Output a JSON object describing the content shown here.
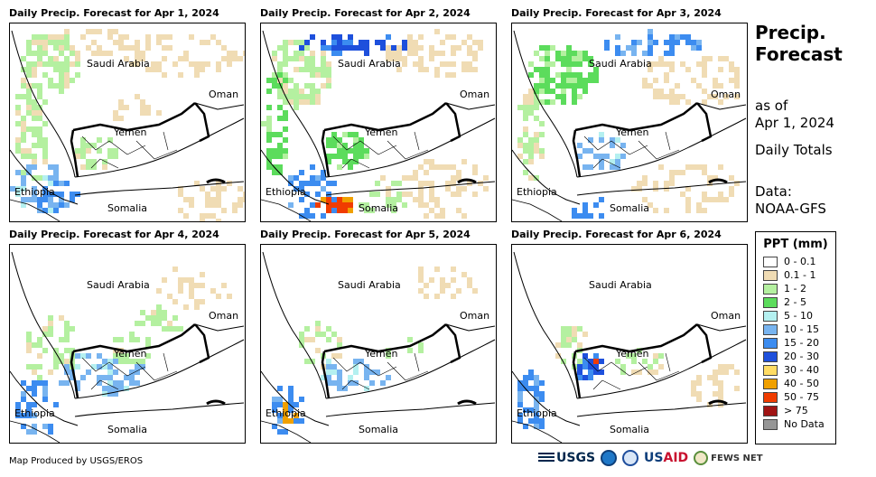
{
  "panels": [
    {
      "title": "Daily Precip. Forecast for Apr 1, 2024"
    },
    {
      "title": "Daily Precip. Forecast for Apr 2, 2024"
    },
    {
      "title": "Daily Precip. Forecast for Apr 3, 2024"
    },
    {
      "title": "Daily Precip. Forecast for Apr 4, 2024"
    },
    {
      "title": "Daily Precip. Forecast for Apr 5, 2024"
    },
    {
      "title": "Daily Precip. Forecast for Apr 6, 2024"
    }
  ],
  "map_labels": {
    "saudi": "Saudi Arabia",
    "oman": "Oman",
    "yemen": "Yemen",
    "ethiopia": "Ethiopia",
    "somalia": "Somalia"
  },
  "header": {
    "title_line1": "Precip.",
    "title_line2": "Forecast",
    "as_of_label": "as of",
    "date": "Apr 1, 2024",
    "totals": "Daily Totals",
    "data_label": "Data:",
    "data_source": "NOAA-GFS"
  },
  "legend": {
    "title": "PPT (mm)",
    "items": [
      {
        "label": "0 - 0.1",
        "color": "#ffffff"
      },
      {
        "label": "0.1 - 1",
        "color": "#f0dcb4"
      },
      {
        "label": "1 - 2",
        "color": "#b4f0a0"
      },
      {
        "label": "2 - 5",
        "color": "#5cdc5c"
      },
      {
        "label": "5 - 10",
        "color": "#b4f0f0"
      },
      {
        "label": "10 - 15",
        "color": "#78b4f0"
      },
      {
        "label": "15 - 20",
        "color": "#3c8cf0"
      },
      {
        "label": "20 - 30",
        "color": "#1e50dc"
      },
      {
        "label": "30 - 40",
        "color": "#ffdc64"
      },
      {
        "label": "40 - 50",
        "color": "#f0a000"
      },
      {
        "label": "50 - 75",
        "color": "#f03c00"
      },
      {
        "label": "> 75",
        "color": "#a01414"
      },
      {
        "label": "No Data",
        "color": "#969696"
      }
    ]
  },
  "footer": {
    "credit": "Map Produced by USGS/EROS",
    "usgs": "USGS",
    "usaid_a": "US",
    "usaid_b": "AID",
    "fews": "FEWS NET"
  }
}
